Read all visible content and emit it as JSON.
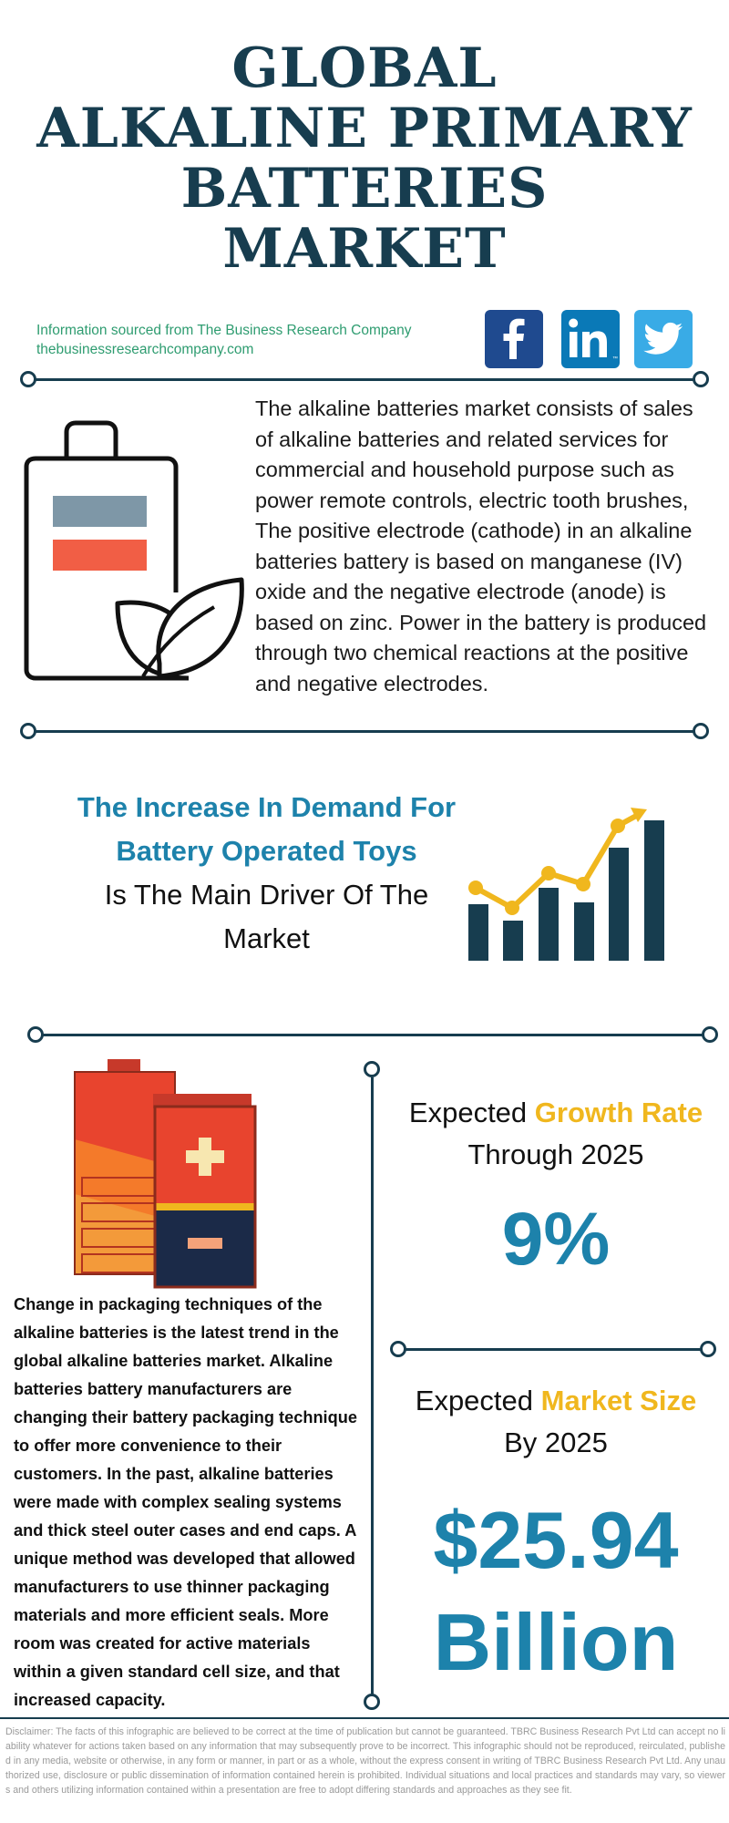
{
  "title": {
    "line1": "GLOBAL",
    "line2": "ALKALINE PRIMARY",
    "line3": "BATTERIES",
    "line4": "MARKET"
  },
  "source": {
    "line1": "Information sourced from The Business Research Company",
    "line2": "thebusinessresearchcompany.com"
  },
  "social": {
    "facebook_icon": "facebook-icon",
    "linkedin_icon": "linkedin-icon",
    "twitter_icon": "twitter-icon",
    "colors": {
      "facebook": "#1f4a8f",
      "linkedin": "#0a79b7",
      "twitter": "#39abe6"
    }
  },
  "intro": {
    "text": "The alkaline batteries market consists of sales of alkaline batteries and related services for commercial and household purpose such as power remote controls, electric tooth brushes, The positive electrode (cathode) in an alkaline batteries battery is based on manganese (IV) oxide and the negative electrode (anode) is based on zinc. Power in the battery is produced through two chemical reactions at the positive and negative electrodes.",
    "icon": "battery-leaf-icon"
  },
  "driver": {
    "highlight_line1": "The Increase In Demand For",
    "highlight_line2": "Battery Operated Toys",
    "normal_line1": "Is The Main Driver Of The",
    "normal_line2": "Market",
    "icon": "growth-bar-chart-icon"
  },
  "trend": {
    "icon": "batteries-icon",
    "text": "Change in packaging techniques of the alkaline batteries is the latest trend in the global alkaline batteries market. Alkaline batteries battery manufacturers are changing their battery packaging technique to offer more convenience to their customers. In the past, alkaline batteries were made with complex sealing systems and thick steel outer cases and end caps. A unique method was developed that allowed manufacturers to use thinner packaging materials and more efficient seals. More room was created for active materials within a given standard cell size, and that increased capacity."
  },
  "growth": {
    "prefix": "Expected ",
    "accent": "Growth Rate",
    "line2": "Through 2025",
    "value": "9%"
  },
  "market": {
    "prefix": "Expected ",
    "accent": "Market Size",
    "line2": "By 2025",
    "value_line1": "$25.94",
    "value_line2": "Billion"
  },
  "colors": {
    "navy": "#173d4f",
    "blue_accent": "#1d82ab",
    "yellow_accent": "#f0b71e",
    "source_green": "#2e9c70"
  },
  "disclaimer": "Disclaimer: The facts of this infographic are believed to be correct at the time of publication but cannot be guaranteed. TBRC Business Research Pvt Ltd can accept no liability whatever for actions taken based on any information that may subsequently prove to be incorrect. This infographic should not be reproduced, reirculated, published in any media, website or otherwise, in any form or manner, in part or as a whole, without the express consent in writing of TBRC Business Research Pvt Ltd. Any unauthorized use, disclosure or public dissemination of information contained herein is prohibited. Individual situations and local practices and standards may vary, so viewers and others utilizing information contained within a presentation are free to adopt differing standards and approaches as they see fit."
}
